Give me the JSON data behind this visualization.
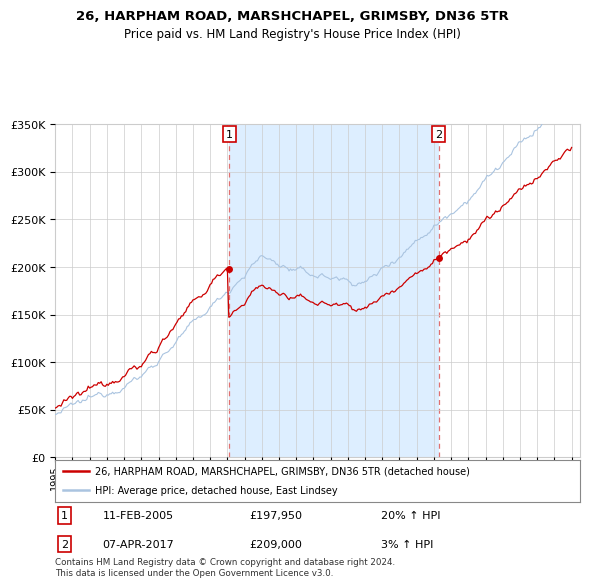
{
  "title1": "26, HARPHAM ROAD, MARSHCHAPEL, GRIMSBY, DN36 5TR",
  "title2": "Price paid vs. HM Land Registry's House Price Index (HPI)",
  "legend_line1": "26, HARPHAM ROAD, MARSHCHAPEL, GRIMSBY, DN36 5TR (detached house)",
  "legend_line2": "HPI: Average price, detached house, East Lindsey",
  "annotation1": {
    "num": "1",
    "date": "11-FEB-2005",
    "price": "£197,950",
    "pct": "20% ↑ HPI"
  },
  "annotation2": {
    "num": "2",
    "date": "07-APR-2017",
    "price": "£209,000",
    "pct": "3% ↑ HPI"
  },
  "footnote": "Contains HM Land Registry data © Crown copyright and database right 2024.\nThis data is licensed under the Open Government Licence v3.0.",
  "sale1_year": 2005.11,
  "sale1_price": 197950,
  "sale2_year": 2017.27,
  "sale2_price": 209000,
  "hpi_color": "#aac4e0",
  "sale_color": "#cc0000",
  "dashed_color": "#e07070",
  "shade_color": "#ddeeff",
  "ylim_min": 0,
  "ylim_max": 350000,
  "xlim_min": 1995,
  "xlim_max": 2025.5,
  "background_color": "#ffffff",
  "grid_color": "#cccccc",
  "title_fontsize": 9.5,
  "subtitle_fontsize": 8.5
}
